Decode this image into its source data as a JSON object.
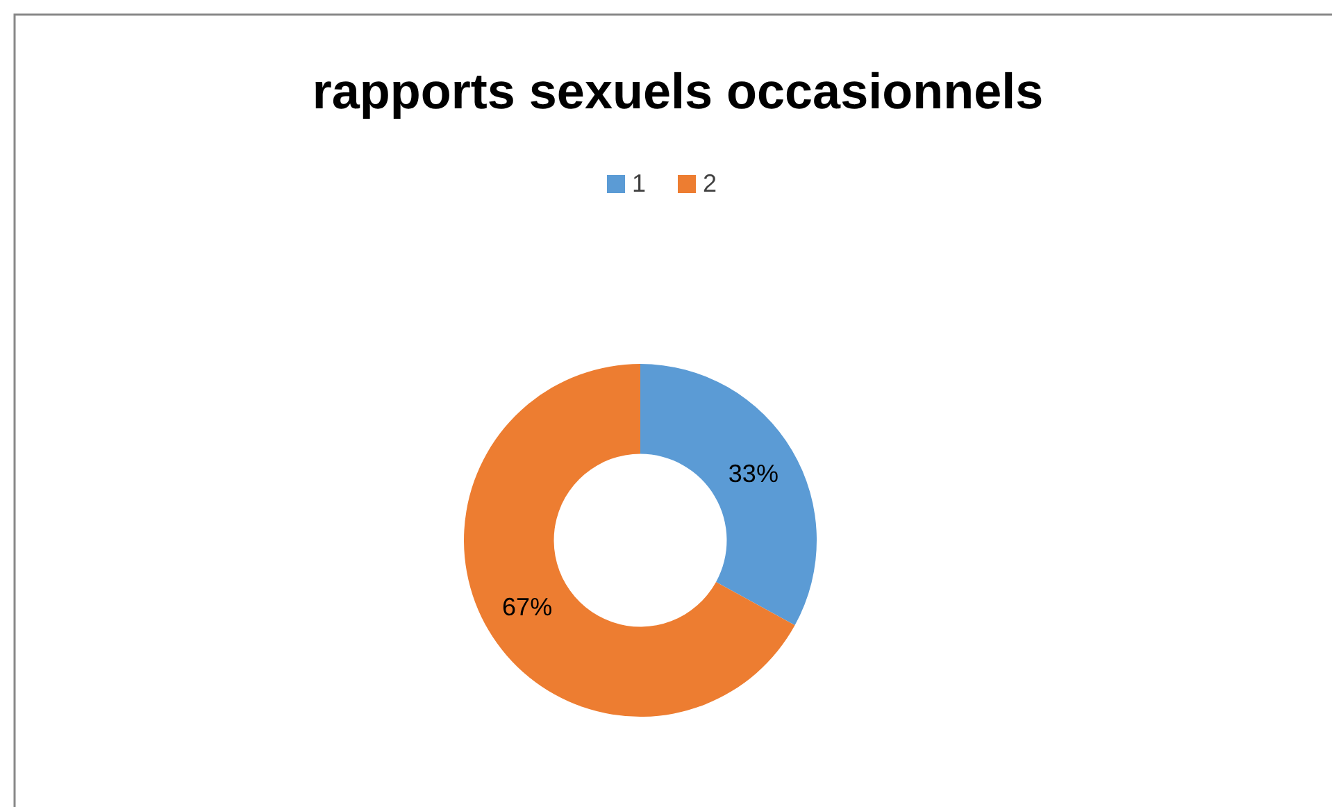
{
  "chart_data": {
    "type": "donut",
    "title": "rapports sexuels occasionnels",
    "categories": [
      "1",
      "2"
    ],
    "values": [
      33,
      67
    ],
    "colors": [
      "#5b9bd5",
      "#ed7d31"
    ],
    "value_labels": [
      "33%",
      "67%"
    ],
    "legend": "top"
  }
}
